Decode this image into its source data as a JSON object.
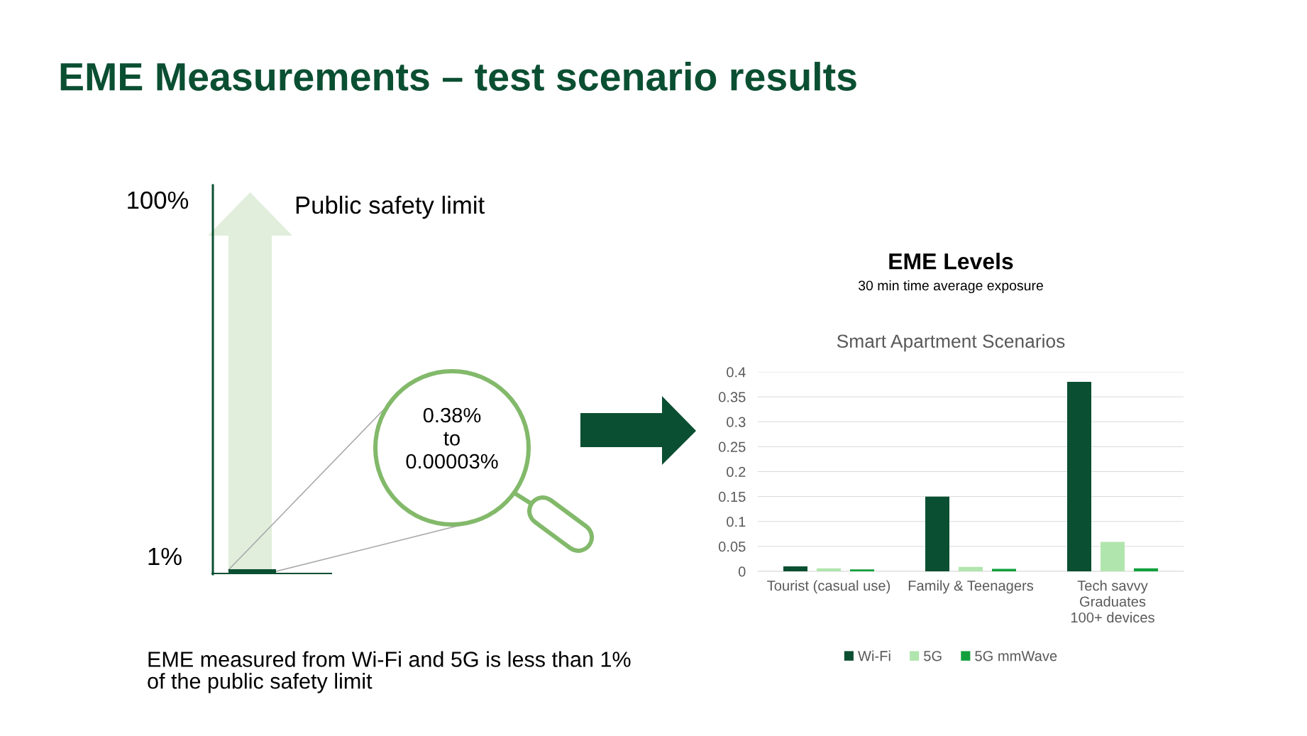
{
  "chart_data": [
    {
      "type": "other",
      "title": "EME Measurements – test scenario results",
      "annotations": [
        "100%",
        "1%",
        "Public safety limit",
        "0.38%\nto\n0.00003%",
        "EME measured from Wi-Fi and 5G is less than 1%\nof the public safety limit"
      ]
    },
    {
      "type": "bar",
      "title": "EME Levels",
      "subtitle": "30 min time average exposure",
      "annotations": [
        "Smart Apartment Scenarios"
      ],
      "categories": [
        "Tourist (casual use)",
        "Family & Teenagers",
        "Tech savvy\nGraduates\n100+ devices"
      ],
      "series": [
        {
          "name": "Wi-Fi",
          "color": "#0b4f32",
          "values": [
            0.01,
            0.15,
            0.38
          ]
        },
        {
          "name": "5G",
          "color": "#b1e5ae",
          "values": [
            0.006,
            0.009,
            0.059
          ]
        },
        {
          "name": "5G mmWave",
          "color": "#12a03c",
          "values": [
            0.004,
            0.005,
            0.006
          ]
        }
      ],
      "ylim": [
        0,
        0.4
      ],
      "yticks": [
        0,
        0.05,
        0.1,
        0.15,
        0.2,
        0.25,
        0.3,
        0.35,
        0.4
      ],
      "grid": "y",
      "legend": "bottom"
    }
  ]
}
